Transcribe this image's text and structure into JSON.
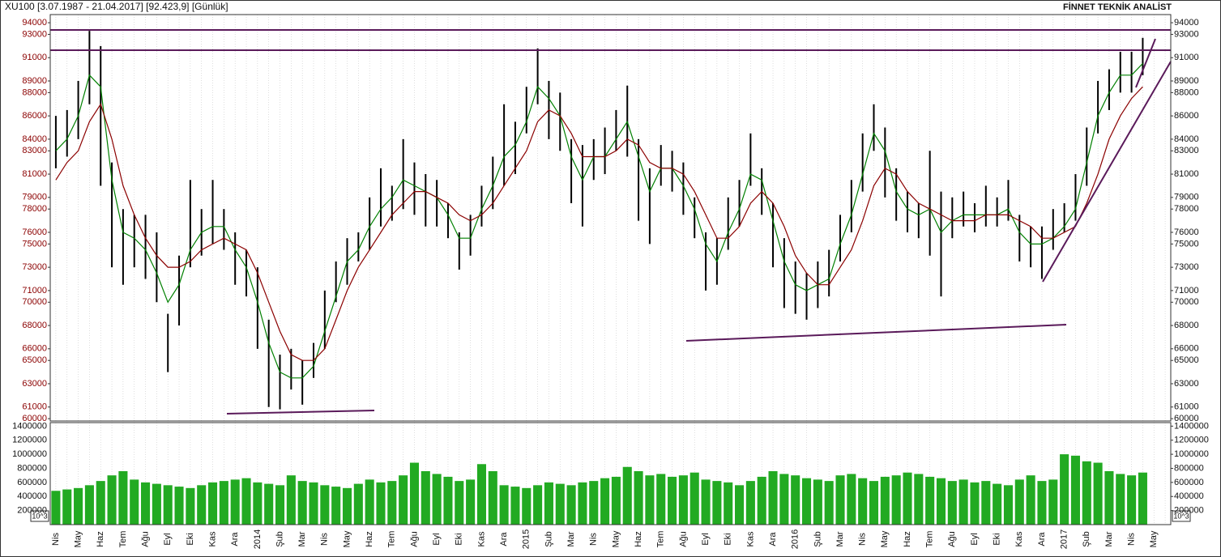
{
  "chart_data": {
    "type": "hilo",
    "title": "XU100  [3.07.1987 - 21.04.2017]  [92.423,9]  [Günlük]",
    "source": "FİNNET TEKNİK ANALİST",
    "categories": [
      "Nis",
      null,
      "May",
      null,
      "Haz",
      null,
      "Tem",
      null,
      "Ağu",
      null,
      "Eyl",
      null,
      "Eki",
      null,
      "Kas",
      null,
      "Ara",
      null,
      "2014",
      null,
      "Şub",
      null,
      "Mar",
      null,
      "Nis",
      null,
      "May",
      null,
      "Haz",
      null,
      "Tem",
      null,
      "Ağu",
      null,
      "Eyl",
      null,
      "Eki",
      null,
      "Kas",
      null,
      "Ara",
      null,
      "2015",
      null,
      "Şub",
      null,
      "Mar",
      null,
      "Nis",
      null,
      "May",
      null,
      "Haz",
      null,
      "Tem",
      null,
      "Ağu",
      null,
      "Eyl",
      null,
      "Eki",
      null,
      "Kas",
      null,
      "Ara",
      null,
      "2016",
      null,
      "Şub",
      null,
      "Mar",
      null,
      "Nis",
      null,
      "May",
      null,
      "Haz",
      null,
      "Tem",
      null,
      "Ağu",
      null,
      "Eyl",
      null,
      "Eki",
      null,
      "Kas",
      null,
      "Ara",
      null,
      "2017",
      null,
      "Şub",
      null,
      "Mar",
      null,
      "Nis",
      null,
      "May",
      null
    ],
    "high": [
      86000,
      86500,
      89000,
      93300,
      92000,
      82000,
      78000,
      77500,
      77500,
      76000,
      69000,
      74000,
      80500,
      78000,
      80500,
      78000,
      76000,
      74500,
      73000,
      68500,
      65500,
      66000,
      65000,
      66500,
      71000,
      73500,
      75500,
      76000,
      79000,
      81500,
      80000,
      84000,
      82000,
      81000,
      80500,
      78500,
      76000,
      77500,
      80000,
      82500,
      87000,
      85500,
      88500,
      91800,
      89000,
      88000,
      84000,
      83500,
      84000,
      85000,
      86500,
      88600,
      84000,
      81500,
      83500,
      83000,
      82000,
      79000,
      76000,
      75500,
      79000,
      80500,
      84500,
      81500,
      78500,
      75500,
      73500,
      72500,
      73500,
      74500,
      77500,
      80500,
      84500,
      87000,
      85000,
      81500,
      79500,
      78500,
      83000,
      79500,
      79000,
      79500,
      78500,
      80000,
      79000,
      80500,
      77500,
      76500,
      76500,
      78000,
      78500,
      81000,
      85000,
      89000,
      90000,
      91500,
      91500,
      92700,
      null,
      null
    ],
    "low": [
      81500,
      82500,
      84000,
      87000,
      80000,
      73000,
      71500,
      73000,
      72000,
      70000,
      64000,
      68000,
      73000,
      74000,
      75000,
      74500,
      71500,
      70500,
      66000,
      61000,
      60800,
      62500,
      61200,
      63500,
      66000,
      70000,
      71500,
      73500,
      74500,
      76500,
      77000,
      78000,
      77500,
      76500,
      76500,
      75500,
      72800,
      74000,
      76500,
      78000,
      80000,
      81000,
      84500,
      87000,
      84000,
      83000,
      78500,
      76500,
      80500,
      81000,
      83000,
      82500,
      77000,
      75000,
      80000,
      79500,
      77500,
      75500,
      71000,
      71500,
      74500,
      76500,
      80000,
      77500,
      73000,
      69500,
      69000,
      68500,
      69500,
      70500,
      73500,
      76000,
      79500,
      83000,
      79000,
      77000,
      76000,
      75500,
      74000,
      70500,
      75500,
      76500,
      76000,
      76500,
      76500,
      77000,
      73500,
      73000,
      72000,
      74500,
      76000,
      77000,
      80000,
      84500,
      86500,
      88000,
      88000,
      89500,
      null,
      null
    ],
    "color": "#000000",
    "series": [
      {
        "color": "#008000",
        "values": [
          83000,
          84000,
          86000,
          89500,
          88500,
          80500,
          76000,
          75500,
          74500,
          72500,
          70000,
          71500,
          74500,
          76000,
          76500,
          76500,
          74500,
          73000,
          70000,
          66500,
          64000,
          63500,
          63500,
          64500,
          67500,
          70500,
          73500,
          74500,
          76500,
          78000,
          79000,
          80500,
          80000,
          79500,
          79000,
          77500,
          75500,
          75500,
          78000,
          80000,
          82500,
          83500,
          85500,
          88500,
          87500,
          86000,
          82500,
          80500,
          82500,
          82500,
          84000,
          85500,
          82500,
          79500,
          81500,
          81500,
          80000,
          78000,
          75000,
          73500,
          76000,
          78000,
          81000,
          80500,
          77000,
          73500,
          71500,
          71000,
          71500,
          72000,
          75000,
          77500,
          81000,
          84500,
          83000,
          79500,
          78000,
          77500,
          78000,
          76000,
          77000,
          77500,
          77500,
          77500,
          77500,
          78000,
          76000,
          75000,
          75000,
          75500,
          76500,
          78000,
          82000,
          86000,
          88000,
          89500,
          89500,
          90500,
          null,
          null
        ]
      },
      {
        "color": "#8b0000",
        "values": [
          80500,
          82000,
          83000,
          85500,
          87000,
          84000,
          80000,
          77500,
          75500,
          74000,
          73000,
          73000,
          73500,
          74500,
          75000,
          75500,
          75000,
          74500,
          72500,
          70000,
          67500,
          65500,
          65000,
          65000,
          66000,
          68500,
          71000,
          73000,
          74500,
          76000,
          77500,
          78500,
          79500,
          79500,
          79000,
          78500,
          77500,
          77000,
          77500,
          78500,
          80000,
          81500,
          83000,
          85500,
          86500,
          86000,
          84500,
          82500,
          82500,
          82500,
          83000,
          84000,
          83500,
          82000,
          81500,
          81500,
          81000,
          79500,
          77500,
          75500,
          75500,
          76500,
          78500,
          79500,
          78500,
          76500,
          74000,
          72500,
          71500,
          71500,
          73000,
          74500,
          77000,
          80000,
          81500,
          81000,
          79500,
          78500,
          78000,
          77500,
          77000,
          77000,
          77000,
          77500,
          77500,
          77500,
          77000,
          76500,
          75500,
          75500,
          76000,
          76500,
          78500,
          81000,
          84000,
          86000,
          87500,
          88500,
          null,
          null
        ]
      }
    ],
    "ylim": [
      59800,
      94700
    ],
    "yticks": [
      60000,
      61000,
      63000,
      65000,
      66000,
      68000,
      70000,
      71000,
      73000,
      75000,
      76000,
      78000,
      79000,
      81000,
      83000,
      84000,
      86000,
      88000,
      89000,
      91000,
      93000,
      94000
    ],
    "grid": true,
    "volume": {
      "type": "bar",
      "color": "#22aa22",
      "unit": "10^3",
      "values": [
        480000,
        500000,
        520000,
        560000,
        620000,
        700000,
        760000,
        640000,
        600000,
        580000,
        560000,
        540000,
        520000,
        560000,
        600000,
        620000,
        640000,
        660000,
        600000,
        580000,
        560000,
        700000,
        620000,
        600000,
        560000,
        540000,
        520000,
        580000,
        640000,
        600000,
        620000,
        700000,
        880000,
        760000,
        720000,
        680000,
        620000,
        640000,
        860000,
        760000,
        560000,
        540000,
        520000,
        560000,
        600000,
        580000,
        560000,
        600000,
        620000,
        660000,
        680000,
        820000,
        760000,
        700000,
        720000,
        680000,
        700000,
        740000,
        640000,
        620000,
        600000,
        560000,
        620000,
        680000,
        760000,
        720000,
        700000,
        660000,
        640000,
        620000,
        700000,
        720000,
        660000,
        620000,
        680000,
        700000,
        740000,
        720000,
        680000,
        660000,
        620000,
        640000,
        600000,
        620000,
        580000,
        560000,
        640000,
        700000,
        620000,
        640000,
        1000000,
        980000,
        900000,
        880000,
        760000,
        720000,
        700000,
        740000,
        null,
        null
      ],
      "ylim": [
        0,
        1450000
      ],
      "yticks": [
        200000,
        400000,
        600000,
        800000,
        1000000,
        1200000,
        1400000
      ]
    }
  }
}
